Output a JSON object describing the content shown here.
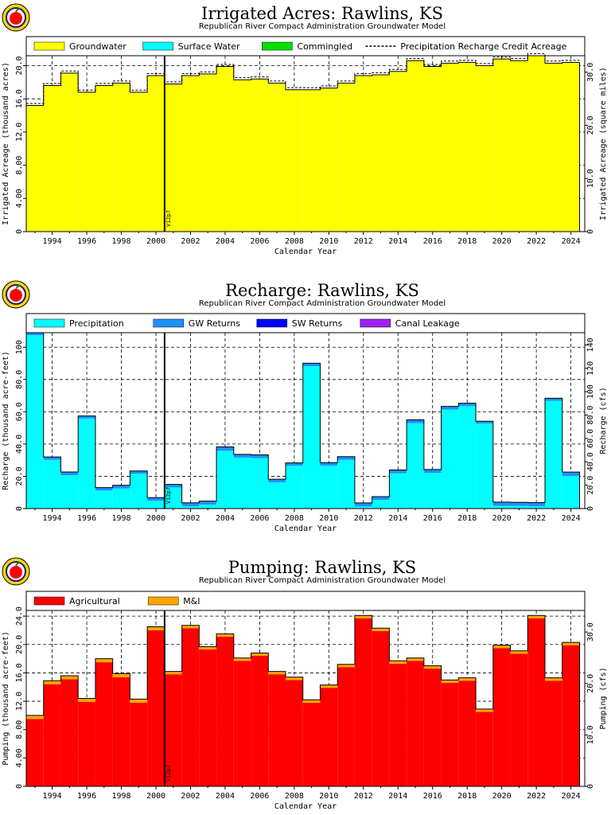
{
  "chart_data": [
    {
      "type": "bar",
      "title": "Irrigated Acres: Rawlins, KS",
      "subtitle": "Republican River Compact Administration Groundwater Model",
      "xlabel": "Calendar Year",
      "ylabel": "Irrigated Acreage (thousand acres)",
      "y2label": "Irrigated Acreage (square miles)",
      "x": [
        1993,
        1994,
        1995,
        1996,
        1997,
        1998,
        1999,
        2000,
        2001,
        2002,
        2003,
        2004,
        2005,
        2006,
        2007,
        2008,
        2009,
        2010,
        2011,
        2012,
        2013,
        2014,
        2015,
        2016,
        2017,
        2018,
        2019,
        2020,
        2021,
        2022,
        2023,
        2024
      ],
      "xticks": [
        "1994",
        "1996",
        "1998",
        "2000",
        "2002",
        "2004",
        "2006",
        "2008",
        "2010",
        "2012",
        "2014",
        "2016",
        "2018",
        "2020",
        "2022",
        "2024"
      ],
      "ylim": [
        0,
        21.2
      ],
      "yticks": [
        "0",
        "4.00",
        "8.00",
        "12.0",
        "16.0",
        "20.0"
      ],
      "y2lim": [
        0,
        33.1
      ],
      "y2ticks": [
        "0",
        "10.0",
        "20.0",
        "30.0"
      ],
      "legend": [
        "Groundwater",
        "Surface Water",
        "Commingled",
        "Precipitation Recharge Credit Acreage"
      ],
      "series": [
        {
          "name": "Groundwater",
          "color": "#ffff00",
          "values": [
            15.2,
            17.6,
            19.1,
            16.8,
            17.6,
            17.9,
            16.8,
            18.8,
            17.8,
            18.8,
            19.0,
            19.9,
            18.3,
            18.4,
            17.9,
            17.1,
            17.1,
            17.3,
            17.9,
            18.8,
            18.9,
            19.3,
            20.6,
            19.9,
            20.3,
            20.4,
            20.0,
            20.8,
            20.6,
            21.2,
            20.3,
            20.4
          ]
        },
        {
          "name": "Surface Water",
          "color": "#00ffff",
          "values": [
            0,
            0,
            0,
            0,
            0,
            0,
            0,
            0,
            0,
            0,
            0,
            0,
            0,
            0,
            0,
            0,
            0,
            0,
            0,
            0,
            0,
            0,
            0,
            0,
            0,
            0,
            0,
            0,
            0,
            0,
            0,
            0
          ]
        },
        {
          "name": "Commingled",
          "color": "#00e000",
          "values": [
            0,
            0,
            0,
            0,
            0,
            0,
            0,
            0,
            0,
            0,
            0,
            0,
            0,
            0,
            0,
            0,
            0,
            0,
            0,
            0,
            0,
            0,
            0,
            0,
            0,
            0,
            0,
            0,
            0,
            0,
            0,
            0
          ]
        }
      ],
      "marker_label": "V12p7",
      "marker_x": 2000.5,
      "grid": true,
      "legend_position": "top"
    },
    {
      "type": "bar",
      "title": "Recharge: Rawlins, KS",
      "subtitle": "Republican River Compact Administration Groundwater Model",
      "xlabel": "Calendar Year",
      "ylabel": "Recharge (thousand acre-feet)",
      "y2label": "Recharge (cfs)",
      "x": [
        1993,
        1994,
        1995,
        1996,
        1997,
        1998,
        1999,
        2000,
        2001,
        2002,
        2003,
        2004,
        2005,
        2006,
        2007,
        2008,
        2009,
        2010,
        2011,
        2012,
        2013,
        2014,
        2015,
        2016,
        2017,
        2018,
        2019,
        2020,
        2021,
        2022,
        2023,
        2024
      ],
      "xticks": [
        "1994",
        "1996",
        "1998",
        "2000",
        "2002",
        "2004",
        "2006",
        "2008",
        "2010",
        "2012",
        "2014",
        "2016",
        "2018",
        "2020",
        "2022",
        "2024"
      ],
      "ylim": [
        0,
        109
      ],
      "yticks": [
        "0",
        "20.0",
        "40.0",
        "60.0",
        "80.0",
        "100"
      ],
      "y2lim": [
        0,
        150.5
      ],
      "y2ticks": [
        "0",
        "20.0",
        "40.0",
        "60.0",
        "80.0",
        "100",
        "120",
        "140"
      ],
      "legend": [
        "Precipitation",
        "GW Returns",
        "SW Returns",
        "Canal Leakage"
      ],
      "series": [
        {
          "name": "Precipitation",
          "color": "#00ffff",
          "values": [
            107.5,
            30.2,
            20.7,
            55.8,
            11.2,
            12.5,
            21.6,
            4.8,
            13.1,
            1.4,
            2.5,
            35.8,
            31.6,
            31.3,
            16.3,
            26.5,
            88.2,
            26.6,
            30.2,
            1.3,
            5.4,
            21.9,
            52.9,
            22.2,
            61.4,
            63.5,
            52.7,
            1.7,
            1.7,
            1.4,
            66.8,
            20.2
          ]
        },
        {
          "name": "GW Returns",
          "color": "#1e90ff",
          "values": [
            1.5,
            1.8,
            2.0,
            1.6,
            1.8,
            1.9,
            1.7,
            2.0,
            1.9,
            2.2,
            2.1,
            2.4,
            2.0,
            2.0,
            1.9,
            1.8,
            1.9,
            1.9,
            2.0,
            2.2,
            2.0,
            2.0,
            2.1,
            2.0,
            1.9,
            1.8,
            1.4,
            2.3,
            2.2,
            2.3,
            1.6,
            2.4
          ]
        },
        {
          "name": "SW Returns",
          "color": "#0000ff",
          "values": [
            0,
            0,
            0,
            0,
            0,
            0,
            0,
            0,
            0,
            0,
            0,
            0,
            0,
            0,
            0,
            0,
            0,
            0,
            0,
            0,
            0,
            0,
            0,
            0,
            0,
            0,
            0,
            0,
            0,
            0,
            0,
            0
          ]
        },
        {
          "name": "Canal Leakage",
          "color": "#a020f0",
          "values": [
            0,
            0,
            0,
            0,
            0,
            0,
            0,
            0,
            0,
            0,
            0,
            0,
            0,
            0,
            0,
            0,
            0,
            0,
            0,
            0,
            0,
            0,
            0,
            0,
            0,
            0,
            0,
            0,
            0,
            0,
            0,
            0
          ]
        }
      ],
      "marker_label": "V12p7",
      "marker_x": 2000.5,
      "grid": true,
      "legend_position": "top"
    },
    {
      "type": "bar",
      "title": "Pumping: Rawlins, KS",
      "subtitle": "Republican River Compact Administration Groundwater Model",
      "xlabel": "Calendar Year",
      "ylabel": "Pumping (thousand acre-feet)",
      "y2label": "Pumping (cfs)",
      "x": [
        1993,
        1994,
        1995,
        1996,
        1997,
        1998,
        1999,
        2000,
        2001,
        2002,
        2003,
        2004,
        2005,
        2006,
        2007,
        2008,
        2009,
        2010,
        2011,
        2012,
        2013,
        2014,
        2015,
        2016,
        2017,
        2018,
        2019,
        2020,
        2021,
        2022,
        2023,
        2024
      ],
      "xticks": [
        "1994",
        "1996",
        "1998",
        "2000",
        "2002",
        "2004",
        "2006",
        "2008",
        "2010",
        "2012",
        "2014",
        "2016",
        "2018",
        "2020",
        "2022",
        "2024"
      ],
      "ylim": [
        0,
        24.8
      ],
      "yticks": [
        "0",
        "4.00",
        "8.00",
        "12.0",
        "16.0",
        "20.0",
        "24.0"
      ],
      "y2lim": [
        0,
        34.2
      ],
      "y2ticks": [
        "0",
        "10.0",
        "20.0",
        "30.0"
      ],
      "legend": [
        "Agricultural",
        "M&I"
      ],
      "series": [
        {
          "name": "Agricultural",
          "color": "#ff0000",
          "values": [
            9.5,
            14.4,
            15.1,
            11.9,
            17.5,
            15.4,
            11.8,
            22.0,
            15.8,
            22.3,
            19.3,
            21.1,
            17.7,
            18.4,
            15.8,
            15.0,
            11.8,
            13.9,
            16.8,
            23.7,
            21.9,
            17.3,
            17.7,
            16.6,
            14.6,
            14.9,
            10.5,
            19.5,
            18.7,
            23.7,
            14.9,
            19.9
          ]
        },
        {
          "name": "M&I",
          "color": "#ffa500",
          "values": [
            0.5,
            0.5,
            0.5,
            0.5,
            0.5,
            0.5,
            0.5,
            0.5,
            0.4,
            0.4,
            0.4,
            0.4,
            0.4,
            0.4,
            0.4,
            0.4,
            0.4,
            0.4,
            0.4,
            0.4,
            0.4,
            0.4,
            0.4,
            0.4,
            0.4,
            0.4,
            0.4,
            0.4,
            0.4,
            0.4,
            0.4,
            0.4
          ]
        }
      ],
      "marker_label": "V12p7",
      "marker_x": 2000.5,
      "grid": true,
      "legend_position": "top"
    }
  ],
  "logo": {
    "name": "apple-logo",
    "colors": [
      "#ffd700",
      "#ff0000",
      "#1a1a80"
    ]
  }
}
